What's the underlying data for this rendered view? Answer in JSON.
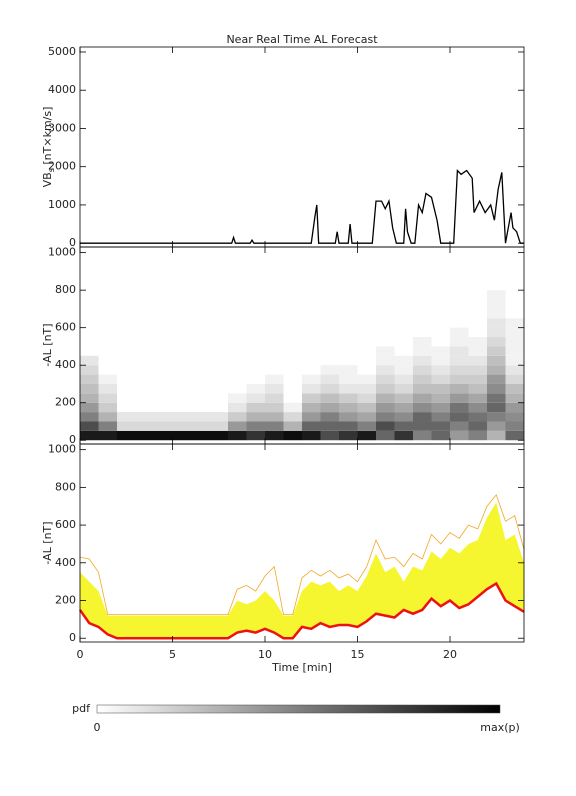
{
  "chart_data": [
    {
      "type": "line",
      "title": "Near Real Time AL Forecast",
      "ylabel": "VB",
      "ylabel_sub": "s",
      "ylabel_unit": " [nT×km/s]",
      "color": "#000000",
      "x": [
        0,
        8.2,
        8.3,
        8.4,
        9.2,
        9.3,
        9.4,
        12.5,
        12.7,
        12.8,
        12.9,
        13.8,
        13.9,
        14,
        14.5,
        14.6,
        14.7,
        15.8,
        16,
        16.3,
        16.5,
        16.7,
        16.9,
        17.1,
        17.5,
        17.6,
        17.7,
        17.9,
        18.1,
        18.3,
        18.5,
        18.7,
        19,
        19.3,
        19.5,
        20.2,
        20.4,
        20.6,
        20.9,
        21.2,
        21.3,
        21.6,
        21.9,
        22.2,
        22.4,
        22.6,
        22.8,
        23,
        23.3,
        23.4,
        23.6,
        23.8,
        24
      ],
      "values": [
        0,
        0,
        150,
        0,
        0,
        80,
        0,
        0,
        700,
        1000,
        0,
        0,
        300,
        0,
        0,
        500,
        0,
        0,
        1100,
        1100,
        900,
        1100,
        400,
        0,
        0,
        900,
        300,
        0,
        0,
        1000,
        800,
        1300,
        1200,
        600,
        0,
        0,
        1900,
        1800,
        1900,
        1700,
        800,
        1100,
        800,
        1000,
        600,
        1400,
        1850,
        0,
        800,
        400,
        300,
        0,
        0
      ],
      "ylim": [
        -100,
        5130
      ],
      "yticks": [
        0,
        1000,
        2000,
        3000,
        4000,
        5000
      ]
    },
    {
      "type": "heatmap",
      "ylabel": "-AL [nT]",
      "colormap": [
        "#ffffff",
        "#000000"
      ],
      "colorbar_label": "pdf",
      "colorbar_min_label": "0",
      "colorbar_max_label": "max(p)",
      "xbins": [
        0,
        1,
        2,
        3,
        4,
        5,
        6,
        7,
        8,
        9,
        10,
        11,
        12,
        13,
        14,
        15,
        16,
        17,
        18,
        19,
        20,
        21,
        22,
        23,
        24
      ],
      "ybins": [
        0,
        50,
        100,
        150,
        200,
        250,
        300,
        350,
        400,
        450,
        500,
        550,
        600,
        650,
        700,
        750,
        800
      ],
      "z": [
        [
          0.9,
          0.7,
          0.5,
          0.4,
          0.3,
          0.25,
          0.2,
          0.15,
          0.1,
          0,
          0,
          0,
          0,
          0,
          0,
          0
        ],
        [
          0.9,
          0.5,
          0.3,
          0.2,
          0.15,
          0.1,
          0.05,
          0,
          0,
          0,
          0,
          0,
          0,
          0,
          0,
          0
        ],
        [
          0.95,
          0.15,
          0.1,
          0,
          0,
          0,
          0,
          0,
          0,
          0,
          0,
          0,
          0,
          0,
          0,
          0
        ],
        [
          0.95,
          0.15,
          0.1,
          0,
          0,
          0,
          0,
          0,
          0,
          0,
          0,
          0,
          0,
          0,
          0,
          0
        ],
        [
          0.95,
          0.15,
          0.1,
          0,
          0,
          0,
          0,
          0,
          0,
          0,
          0,
          0,
          0,
          0,
          0,
          0
        ],
        [
          0.95,
          0.15,
          0.1,
          0,
          0,
          0,
          0,
          0,
          0,
          0,
          0,
          0,
          0,
          0,
          0,
          0
        ],
        [
          0.95,
          0.15,
          0.1,
          0,
          0,
          0,
          0,
          0,
          0,
          0,
          0,
          0,
          0,
          0,
          0,
          0
        ],
        [
          0.95,
          0.15,
          0.1,
          0,
          0,
          0,
          0,
          0,
          0,
          0,
          0,
          0,
          0,
          0,
          0,
          0
        ],
        [
          0.9,
          0.4,
          0.2,
          0.1,
          0.05,
          0,
          0,
          0,
          0,
          0,
          0,
          0,
          0,
          0,
          0,
          0
        ],
        [
          0.8,
          0.5,
          0.3,
          0.2,
          0.1,
          0.05,
          0,
          0,
          0,
          0,
          0,
          0,
          0,
          0,
          0,
          0
        ],
        [
          0.9,
          0.5,
          0.3,
          0.2,
          0.15,
          0.1,
          0.05,
          0,
          0,
          0,
          0,
          0,
          0,
          0,
          0,
          0
        ],
        [
          0.95,
          0.3,
          0.15,
          0.05,
          0,
          0,
          0,
          0,
          0,
          0,
          0,
          0,
          0,
          0,
          0,
          0
        ],
        [
          0.9,
          0.6,
          0.4,
          0.3,
          0.2,
          0.1,
          0.05,
          0,
          0,
          0,
          0,
          0,
          0,
          0,
          0,
          0
        ],
        [
          0.7,
          0.6,
          0.5,
          0.35,
          0.25,
          0.15,
          0.1,
          0.05,
          0,
          0,
          0,
          0,
          0,
          0,
          0,
          0
        ],
        [
          0.8,
          0.6,
          0.4,
          0.3,
          0.2,
          0.1,
          0.05,
          0.05,
          0,
          0,
          0,
          0,
          0,
          0,
          0,
          0
        ],
        [
          0.9,
          0.5,
          0.35,
          0.25,
          0.15,
          0.1,
          0.05,
          0,
          0,
          0,
          0,
          0,
          0,
          0,
          0,
          0
        ],
        [
          0.6,
          0.7,
          0.5,
          0.4,
          0.3,
          0.2,
          0.15,
          0.1,
          0.05,
          0.05,
          0,
          0,
          0,
          0,
          0,
          0
        ],
        [
          0.8,
          0.6,
          0.45,
          0.35,
          0.25,
          0.15,
          0.1,
          0.05,
          0.05,
          0,
          0,
          0,
          0,
          0,
          0,
          0
        ],
        [
          0.5,
          0.6,
          0.6,
          0.45,
          0.35,
          0.25,
          0.2,
          0.15,
          0.1,
          0.05,
          0.05,
          0,
          0,
          0,
          0,
          0
        ],
        [
          0.6,
          0.6,
          0.5,
          0.4,
          0.3,
          0.25,
          0.15,
          0.1,
          0.05,
          0.05,
          0,
          0,
          0,
          0,
          0,
          0
        ],
        [
          0.4,
          0.5,
          0.6,
          0.55,
          0.4,
          0.3,
          0.2,
          0.15,
          0.1,
          0.1,
          0.05,
          0.05,
          0,
          0,
          0,
          0
        ],
        [
          0.5,
          0.6,
          0.55,
          0.45,
          0.35,
          0.25,
          0.2,
          0.15,
          0.1,
          0.05,
          0.05,
          0,
          0,
          0,
          0,
          0
        ],
        [
          0.3,
          0.4,
          0.5,
          0.6,
          0.55,
          0.45,
          0.4,
          0.3,
          0.25,
          0.2,
          0.15,
          0.1,
          0.1,
          0.05,
          0.05,
          0.05
        ],
        [
          0.6,
          0.5,
          0.45,
          0.4,
          0.3,
          0.25,
          0.15,
          0.1,
          0.05,
          0.05,
          0.05,
          0.05,
          0.05,
          0,
          0,
          0
        ]
      ],
      "ylim": [
        -20,
        1030
      ],
      "yticks": [
        0,
        200,
        400,
        600,
        800,
        1000
      ]
    },
    {
      "type": "band",
      "ylabel": "-AL [nT]",
      "xlabel": "Time [min]",
      "x": [
        0,
        0.5,
        1,
        1.5,
        2,
        2.5,
        3,
        3.5,
        4,
        4.5,
        5,
        5.5,
        6,
        6.5,
        7,
        7.5,
        8,
        8.5,
        9,
        9.5,
        10,
        10.5,
        11,
        11.5,
        12,
        12.5,
        13,
        13.5,
        14,
        14.5,
        15,
        15.5,
        16,
        16.5,
        17,
        17.5,
        18,
        18.5,
        19,
        19.5,
        20,
        20.5,
        21,
        21.5,
        22,
        22.5,
        23,
        23.5,
        24
      ],
      "series": [
        {
          "color": "#f5f530",
          "values": [
            350,
            300,
            250,
            120,
            120,
            120,
            120,
            120,
            120,
            120,
            120,
            120,
            120,
            120,
            120,
            120,
            120,
            200,
            180,
            200,
            250,
            200,
            120,
            120,
            250,
            300,
            280,
            300,
            250,
            280,
            250,
            330,
            450,
            350,
            380,
            300,
            380,
            360,
            460,
            420,
            480,
            450,
            500,
            520,
            640,
            720,
            520,
            550,
            400
          ]
        },
        {
          "color": "#f5a623",
          "values": [
            430,
            420,
            350,
            125,
            125,
            125,
            125,
            125,
            125,
            125,
            125,
            125,
            125,
            125,
            125,
            125,
            125,
            260,
            280,
            250,
            330,
            380,
            125,
            125,
            320,
            360,
            330,
            360,
            320,
            340,
            300,
            380,
            520,
            420,
            430,
            380,
            450,
            420,
            550,
            500,
            560,
            530,
            600,
            580,
            700,
            760,
            620,
            650,
            470
          ]
        },
        {
          "color": "#ee1111",
          "values": [
            150,
            80,
            60,
            20,
            0,
            0,
            0,
            0,
            0,
            0,
            0,
            0,
            0,
            0,
            0,
            0,
            0,
            30,
            40,
            30,
            50,
            30,
            0,
            0,
            60,
            50,
            80,
            60,
            70,
            70,
            60,
            90,
            130,
            120,
            110,
            150,
            130,
            150,
            210,
            170,
            200,
            160,
            180,
            220,
            260,
            290,
            200,
            170,
            140
          ]
        }
      ],
      "xlim": [
        0,
        24
      ],
      "xticks": [
        0,
        5,
        10,
        15,
        20
      ],
      "ylim": [
        -20,
        1030
      ],
      "yticks": [
        0,
        200,
        400,
        600,
        800,
        1000
      ]
    }
  ]
}
